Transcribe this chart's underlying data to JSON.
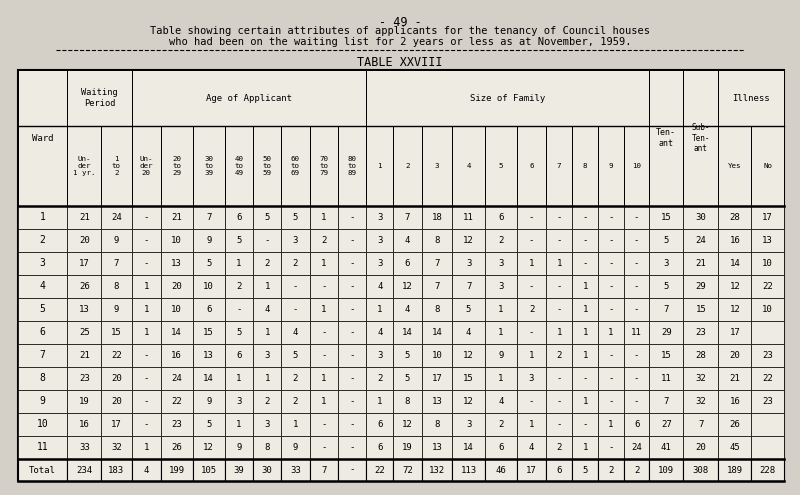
{
  "title_line1": "- 49 -",
  "title_line2": "Table showing certain attributes of applicants for the tenancy of Council houses",
  "title_line3": "who had been on the waiting list for 2 years or less as at November, 1959.",
  "table_title": "TABLE XXVIII",
  "bg_color": "#d4d0c8",
  "table_bg": "#eeebe3",
  "rows": [
    [
      "1",
      "21",
      "24",
      "-",
      "21",
      "7",
      "6",
      "5",
      "5",
      "1",
      "-",
      "3",
      "7",
      "18",
      "11",
      "6",
      "-",
      "-",
      "-",
      "-",
      "-",
      "15",
      "30",
      "28",
      "17"
    ],
    [
      "2",
      "20",
      "9",
      "-",
      "10",
      "9",
      "5",
      "-",
      "3",
      "2",
      "-",
      "3",
      "4",
      "8",
      "12",
      "2",
      "-",
      "-",
      "-",
      "-",
      "-",
      "5",
      "24",
      "16",
      "13"
    ],
    [
      "3",
      "17",
      "7",
      "-",
      "13",
      "5",
      "1",
      "2",
      "2",
      "1",
      "-",
      "3",
      "6",
      "7",
      "3",
      "3",
      "1",
      "1",
      "-",
      "-",
      "-",
      "3",
      "21",
      "14",
      "10"
    ],
    [
      "4",
      "26",
      "8",
      "1",
      "20",
      "10",
      "2",
      "1",
      "-",
      "-",
      "-",
      "4",
      "12",
      "7",
      "7",
      "3",
      "-",
      "-",
      "1",
      "-",
      "-",
      "5",
      "29",
      "12",
      "22"
    ],
    [
      "5",
      "13",
      "9",
      "1",
      "10",
      "6",
      "-",
      "4",
      "-",
      "1",
      "-",
      "1",
      "4",
      "8",
      "5",
      "1",
      "2",
      "-",
      "1",
      "-",
      "-",
      "7",
      "15",
      "12",
      "10"
    ],
    [
      "6",
      "25",
      "15",
      "1",
      "14",
      "15",
      "5",
      "1",
      "4",
      "-",
      "-",
      "4",
      "14",
      "14",
      "4",
      "1",
      "-",
      "1",
      "1",
      "1",
      "11",
      "29",
      "23",
      "17",
      ""
    ],
    [
      "7",
      "21",
      "22",
      "-",
      "16",
      "13",
      "6",
      "3",
      "5",
      "-",
      "-",
      "3",
      "5",
      "10",
      "12",
      "9",
      "1",
      "2",
      "1",
      "-",
      "-",
      "15",
      "28",
      "20",
      "23"
    ],
    [
      "8",
      "23",
      "20",
      "-",
      "24",
      "14",
      "1",
      "1",
      "2",
      "1",
      "-",
      "2",
      "5",
      "17",
      "15",
      "1",
      "3",
      "-",
      "-",
      "-",
      "-",
      "11",
      "32",
      "21",
      "22"
    ],
    [
      "9",
      "19",
      "20",
      "-",
      "22",
      "9",
      "3",
      "2",
      "2",
      "1",
      "-",
      "1",
      "8",
      "13",
      "12",
      "4",
      "-",
      "-",
      "1",
      "-",
      "-",
      "7",
      "32",
      "16",
      "23"
    ],
    [
      "10",
      "16",
      "17",
      "-",
      "23",
      "5",
      "1",
      "3",
      "1",
      "-",
      "-",
      "6",
      "12",
      "8",
      "3",
      "2",
      "1",
      "-",
      "-",
      "1",
      "6",
      "27",
      "7",
      "26",
      ""
    ],
    [
      "11",
      "33",
      "32",
      "1",
      "26",
      "12",
      "9",
      "8",
      "9",
      "-",
      "-",
      "6",
      "19",
      "13",
      "14",
      "6",
      "4",
      "2",
      "1",
      "-",
      "24",
      "41",
      "20",
      "45",
      ""
    ]
  ],
  "total_row": [
    "Total",
    "234",
    "183",
    "4",
    "199",
    "105",
    "39",
    "30",
    "33",
    "7",
    "-",
    "22",
    "72",
    "132",
    "113",
    "46",
    "17",
    "6",
    "5",
    "2",
    "2",
    "109",
    "308",
    "189",
    "228"
  ]
}
